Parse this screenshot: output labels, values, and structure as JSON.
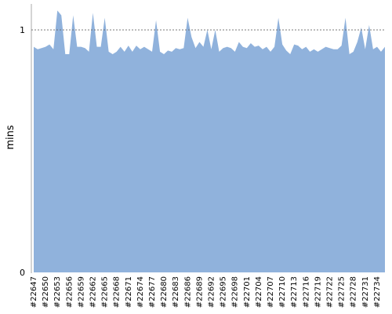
{
  "chart_data": {
    "type": "area",
    "y_label": "mins",
    "categories": [
      "#22647",
      null,
      null,
      "#22650",
      null,
      null,
      "#22653",
      null,
      null,
      "#22656",
      null,
      null,
      "#22659",
      null,
      null,
      "#22662",
      null,
      null,
      "#22665",
      null,
      null,
      "#22668",
      null,
      null,
      "#22671",
      null,
      null,
      "#22674",
      null,
      null,
      "#22677",
      null,
      null,
      "#22680",
      null,
      null,
      "#22683",
      null,
      null,
      "#22686",
      null,
      null,
      "#22689",
      null,
      null,
      "#22692",
      null,
      null,
      "#22695",
      null,
      null,
      "#22698",
      null,
      null,
      "#22701",
      null,
      null,
      "#22704",
      null,
      null,
      "#22707",
      null,
      null,
      "#22710",
      null,
      null,
      "#22713",
      null,
      null,
      "#22716",
      null,
      null,
      "#22719",
      null,
      null,
      "#22722",
      null,
      null,
      "#22725",
      null,
      null,
      "#22728",
      null,
      null,
      "#22731",
      null,
      null,
      "#22734",
      null,
      null
    ],
    "values": [
      0.93,
      0.92,
      0.925,
      0.93,
      0.94,
      0.92,
      1.08,
      1.06,
      0.9,
      0.9,
      1.06,
      0.93,
      0.93,
      0.925,
      0.91,
      1.07,
      0.93,
      0.93,
      1.05,
      0.91,
      0.9,
      0.91,
      0.93,
      0.91,
      0.935,
      0.91,
      0.935,
      0.92,
      0.93,
      0.92,
      0.91,
      1.04,
      0.91,
      0.9,
      0.915,
      0.91,
      0.925,
      0.92,
      0.925,
      1.05,
      0.97,
      0.925,
      0.95,
      0.93,
      1.0,
      0.92,
      1.0,
      0.91,
      0.925,
      0.93,
      0.925,
      0.91,
      0.95,
      0.93,
      0.925,
      0.945,
      0.93,
      0.935,
      0.92,
      0.93,
      0.91,
      0.93,
      1.05,
      0.94,
      0.915,
      0.9,
      0.94,
      0.935,
      0.92,
      0.93,
      0.91,
      0.92,
      0.91,
      0.92,
      0.93,
      0.925,
      0.92,
      0.92,
      0.935,
      1.05,
      0.9,
      0.91,
      0.95,
      1.01,
      0.92,
      1.02,
      0.92,
      0.93,
      0.91,
      0.93
    ],
    "color": "#90b2dc",
    "ylim": [
      0,
      1.107
    ],
    "yticks": [
      0,
      1
    ],
    "grid": true
  }
}
